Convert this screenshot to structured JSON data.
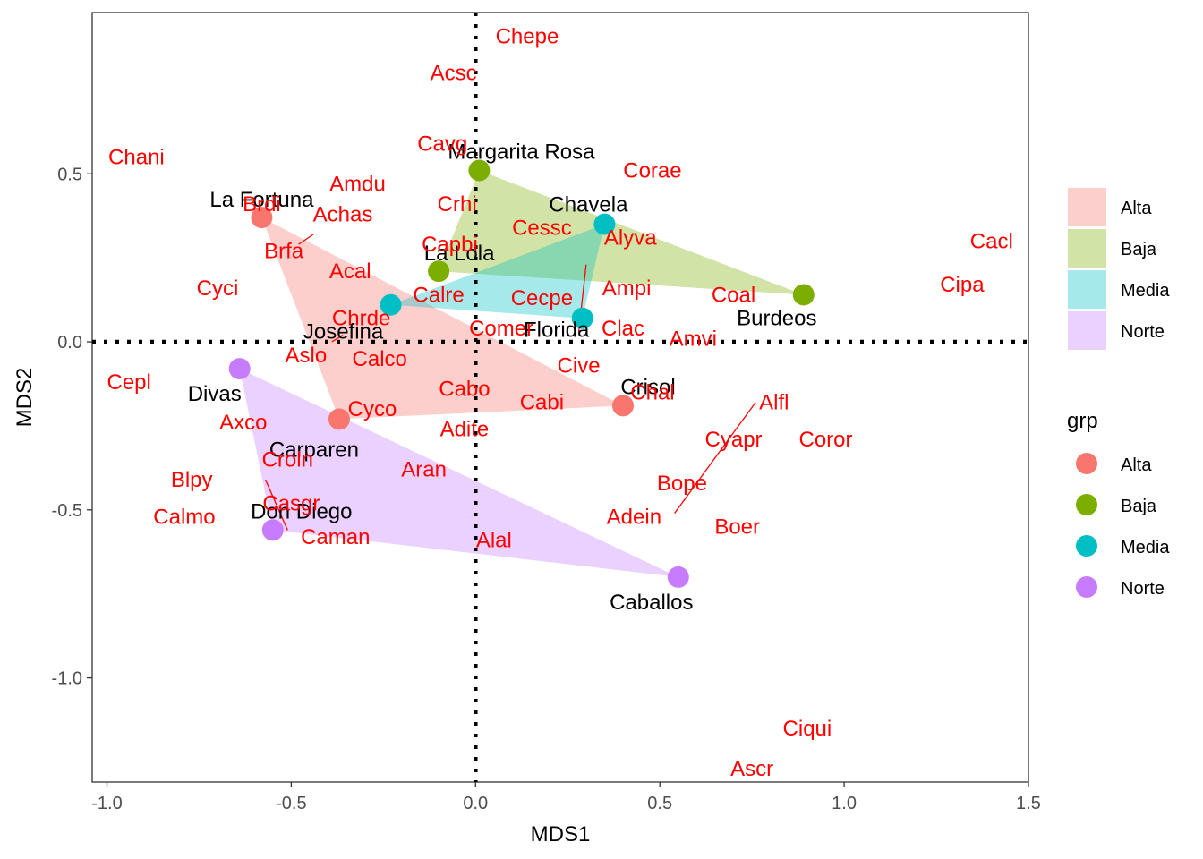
{
  "chart_data": {
    "type": "scatter",
    "xlabel": "MDS1",
    "ylabel": "MDS2",
    "xlim": [
      -1.04,
      1.5
    ],
    "ylim": [
      -1.31,
      0.98
    ],
    "x_ticks": [
      -1.0,
      -0.5,
      0.0,
      0.5,
      1.0,
      1.5
    ],
    "x_tick_labels": [
      "-1.0",
      "-0.5",
      "0.0",
      "0.5",
      "1.0",
      "1.5"
    ],
    "y_ticks": [
      -1.0,
      -0.5,
      0.0,
      0.5
    ],
    "y_tick_labels": [
      "-1.0",
      "-0.5",
      "0.0",
      "0.5"
    ],
    "grid": false,
    "reference_lines": {
      "x": 0,
      "y": 0,
      "style": "dotted"
    },
    "legend_placement": "right",
    "fill_legend": {
      "items": [
        {
          "label": "Alta",
          "color": "#f8766d"
        },
        {
          "label": "Baja",
          "color": "#7cae00"
        },
        {
          "label": "Media",
          "color": "#00bfc4"
        },
        {
          "label": "Norte",
          "color": "#c77cff"
        }
      ]
    },
    "color_legend": {
      "title": "grp",
      "items": [
        {
          "label": "Alta",
          "color": "#f8766d"
        },
        {
          "label": "Baja",
          "color": "#7cae00"
        },
        {
          "label": "Media",
          "color": "#00bfc4"
        },
        {
          "label": "Norte",
          "color": "#c77cff"
        }
      ]
    },
    "groups": [
      {
        "name": "Alta",
        "color": "#f8766d",
        "hull": [
          "La Fortuna",
          "Crisol",
          "Carparen"
        ]
      },
      {
        "name": "Baja",
        "color": "#7cae00",
        "hull": [
          "Margarita Rosa",
          "La Lola",
          "Burdeos"
        ]
      },
      {
        "name": "Media",
        "color": "#00bfc4",
        "hull": [
          "Chavela",
          "Josefina",
          "Florida"
        ]
      },
      {
        "name": "Norte",
        "color": "#c77cff",
        "hull": [
          "Divas",
          "Don Diego",
          "Caballos"
        ]
      }
    ],
    "sites": [
      {
        "name": "La Fortuna",
        "group": "Alta",
        "x": -0.58,
        "y": 0.37
      },
      {
        "name": "Crisol",
        "group": "Alta",
        "x": 0.4,
        "y": -0.19
      },
      {
        "name": "Carparen",
        "group": "Alta",
        "x": -0.37,
        "y": -0.23
      },
      {
        "name": "Margarita Rosa",
        "group": "Baja",
        "x": 0.01,
        "y": 0.51
      },
      {
        "name": "La Lola",
        "group": "Baja",
        "x": -0.1,
        "y": 0.21
      },
      {
        "name": "Burdeos",
        "group": "Baja",
        "x": 0.89,
        "y": 0.14
      },
      {
        "name": "Chavela",
        "group": "Media",
        "x": 0.35,
        "y": 0.35
      },
      {
        "name": "Josefina",
        "group": "Media",
        "x": -0.23,
        "y": 0.11
      },
      {
        "name": "Florida",
        "group": "Media",
        "x": 0.29,
        "y": 0.07
      },
      {
        "name": "Divas",
        "group": "Norte",
        "x": -0.64,
        "y": -0.08
      },
      {
        "name": "Don Diego",
        "group": "Norte",
        "x": -0.55,
        "y": -0.56
      },
      {
        "name": "Caballos",
        "group": "Norte",
        "x": 0.55,
        "y": -0.7
      }
    ],
    "species": [
      {
        "name": "Chepe",
        "x": 0.14,
        "y": 0.91
      },
      {
        "name": "Acsc",
        "x": -0.06,
        "y": 0.8
      },
      {
        "name": "Chani",
        "x": -0.92,
        "y": 0.55
      },
      {
        "name": "Cavg",
        "x": -0.09,
        "y": 0.59
      },
      {
        "name": "Corae",
        "x": 0.48,
        "y": 0.51
      },
      {
        "name": "Amdu",
        "x": -0.32,
        "y": 0.47
      },
      {
        "name": "Brdi",
        "x": -0.58,
        "y": 0.41
      },
      {
        "name": "Achas",
        "x": -0.36,
        "y": 0.38
      },
      {
        "name": "Crhi",
        "x": -0.05,
        "y": 0.41
      },
      {
        "name": "Cessc",
        "x": 0.18,
        "y": 0.34
      },
      {
        "name": "Alyva",
        "x": 0.42,
        "y": 0.31
      },
      {
        "name": "Capbi",
        "x": -0.07,
        "y": 0.29
      },
      {
        "name": "Brfa",
        "x": -0.52,
        "y": 0.27
      },
      {
        "name": "Cacl",
        "x": 1.4,
        "y": 0.3
      },
      {
        "name": "Cipa",
        "x": 1.32,
        "y": 0.17
      },
      {
        "name": "Acal",
        "x": -0.34,
        "y": 0.21
      },
      {
        "name": "Cyci",
        "x": -0.7,
        "y": 0.16
      },
      {
        "name": "Ampi",
        "x": 0.41,
        "y": 0.16
      },
      {
        "name": "Coal",
        "x": 0.7,
        "y": 0.14
      },
      {
        "name": "Calre",
        "x": -0.1,
        "y": 0.14
      },
      {
        "name": "Cecpe",
        "x": 0.18,
        "y": 0.13
      },
      {
        "name": "Chrde",
        "x": -0.31,
        "y": 0.07
      },
      {
        "name": "Comer",
        "x": 0.07,
        "y": 0.04
      },
      {
        "name": "Clac",
        "x": 0.4,
        "y": 0.04
      },
      {
        "name": "Amvi",
        "x": 0.59,
        "y": 0.01
      },
      {
        "name": "Aslo",
        "x": -0.46,
        "y": -0.04
      },
      {
        "name": "Calco",
        "x": -0.26,
        "y": -0.05
      },
      {
        "name": "Cive",
        "x": 0.28,
        "y": -0.07
      },
      {
        "name": "Cepl",
        "x": -0.94,
        "y": -0.12
      },
      {
        "name": "Cabo",
        "x": -0.03,
        "y": -0.14
      },
      {
        "name": "Chal",
        "x": 0.48,
        "y": -0.15
      },
      {
        "name": "Cabi",
        "x": 0.18,
        "y": -0.18
      },
      {
        "name": "Alfl",
        "x": 0.81,
        "y": -0.18
      },
      {
        "name": "Cyco",
        "x": -0.28,
        "y": -0.2
      },
      {
        "name": "Axco",
        "x": -0.63,
        "y": -0.24
      },
      {
        "name": "Adite",
        "x": -0.03,
        "y": -0.26
      },
      {
        "name": "Cyapr",
        "x": 0.7,
        "y": -0.29
      },
      {
        "name": "Coror",
        "x": 0.95,
        "y": -0.29
      },
      {
        "name": "Croln",
        "x": -0.51,
        "y": -0.35
      },
      {
        "name": "Aran",
        "x": -0.14,
        "y": -0.38
      },
      {
        "name": "Blpy",
        "x": -0.77,
        "y": -0.41
      },
      {
        "name": "Bope",
        "x": 0.56,
        "y": -0.42
      },
      {
        "name": "Casgr",
        "x": -0.5,
        "y": -0.48
      },
      {
        "name": "Calmo",
        "x": -0.79,
        "y": -0.52
      },
      {
        "name": "Adein",
        "x": 0.43,
        "y": -0.52
      },
      {
        "name": "Boer",
        "x": 0.71,
        "y": -0.55
      },
      {
        "name": "Caman",
        "x": -0.38,
        "y": -0.58
      },
      {
        "name": "Alal",
        "x": 0.05,
        "y": -0.59
      },
      {
        "name": "Ciqui",
        "x": 0.9,
        "y": -1.15
      },
      {
        "name": "Ascr",
        "x": 0.75,
        "y": -1.27
      }
    ],
    "connectors": [
      {
        "x1": -0.44,
        "y1": 0.32,
        "x2": -0.48,
        "y2": 0.29
      },
      {
        "x1": 0.3,
        "y1": 0.23,
        "x2": 0.28,
        "y2": 0.03
      },
      {
        "x1": -0.39,
        "y1": 0.0,
        "x2": -0.36,
        "y2": 0.02
      },
      {
        "x1": 0.76,
        "y1": -0.18,
        "x2": 0.54,
        "y2": -0.51
      },
      {
        "x1": -0.57,
        "y1": -0.41,
        "x2": -0.51,
        "y2": -0.56
      }
    ]
  }
}
